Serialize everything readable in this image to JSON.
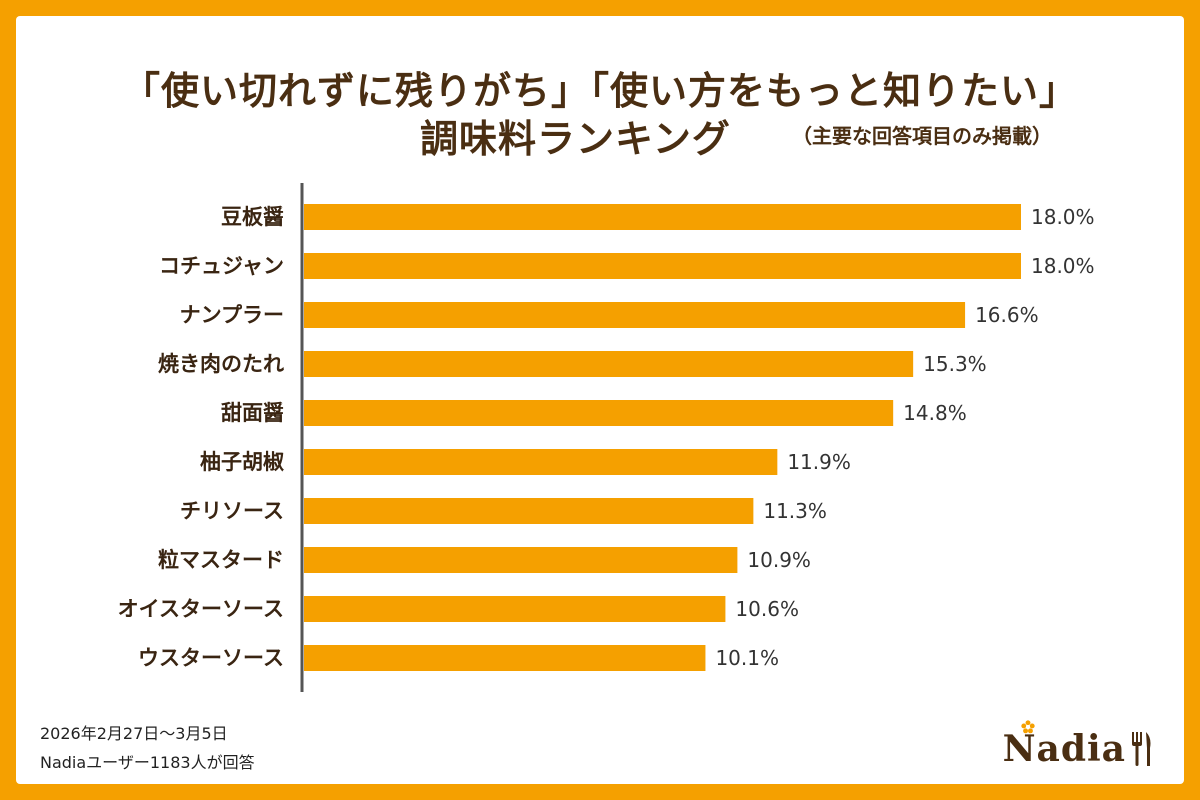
{
  "title": {
    "line1": "「使い切れずに残りがち」「使い方をもっと知りたい」",
    "line2": "調味料ランキング",
    "note": "（主要な回答項目のみ掲載）"
  },
  "footnote": {
    "period": "2026年2月27日〜3月5日",
    "respondents": "Nadiaユーザー1183人が回答"
  },
  "logo": {
    "text": "Nadia"
  },
  "colors": {
    "frame": "#f5a000",
    "bar": "#f5a000",
    "axis": "#555555",
    "title": "#4a2e12"
  },
  "chart_data": {
    "type": "bar",
    "orientation": "horizontal",
    "categories": [
      "豆板醤",
      "コチュジャン",
      "ナンプラー",
      "焼き肉のたれ",
      "甜面醤",
      "柚子胡椒",
      "チリソース",
      "粒マスタード",
      "オイスターソース",
      "ウスターソース"
    ],
    "values": [
      18.0,
      18.0,
      16.6,
      15.3,
      14.8,
      11.9,
      11.3,
      10.9,
      10.6,
      10.1
    ],
    "value_labels": [
      "18.0%",
      "18.0%",
      "16.6%",
      "15.3%",
      "14.8%",
      "11.9%",
      "11.3%",
      "10.9%",
      "10.6%",
      "10.1%"
    ],
    "unit": "%",
    "xlim": [
      0,
      18.0
    ],
    "grid": false,
    "legend": "none"
  }
}
